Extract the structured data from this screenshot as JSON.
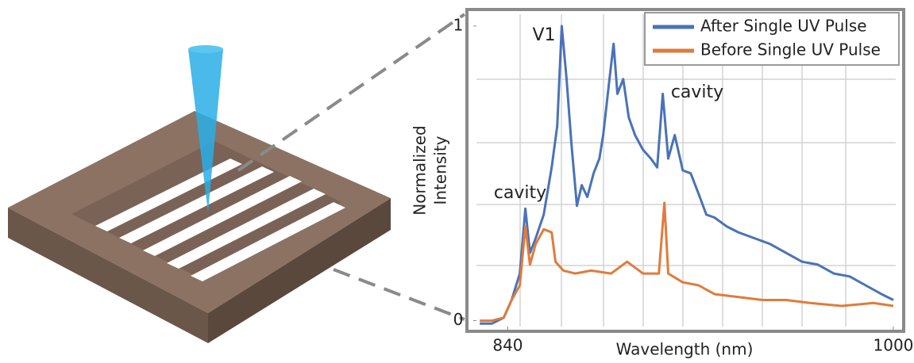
{
  "chart_data": {
    "type": "line",
    "xlabel": "Wavelength (nm)",
    "ylabel": [
      "Normalized",
      "Intensity"
    ],
    "xlim": [
      827,
      1001
    ],
    "xticks": [
      840,
      1000
    ],
    "ylim": [
      -0.02,
      1.04
    ],
    "yticks": [
      0,
      1
    ],
    "grid": true,
    "legend": "upper right",
    "annotations": [
      "V1",
      "cavity",
      "cavity"
    ],
    "series": [
      {
        "name": "After Single UV Pulse",
        "color": "#4a72b8",
        "x": [
          828.4,
          833.4,
          838.3,
          841.6,
          845,
          847.3,
          849.2,
          851.6,
          854.9,
          858.2,
          860.5,
          862.4,
          864.4,
          866.4,
          868.7,
          870.7,
          873,
          875.6,
          878,
          879.6,
          882.2,
          883.9,
          885.5,
          887.9,
          890.2,
          892.8,
          896.1,
          899.4,
          902,
          904.3,
          906.6,
          909.3,
          912.6,
          915.9,
          919.2,
          922.4,
          925.8,
          930.8,
          935.7,
          942.3,
          948.9,
          955.5,
          962.1,
          968.7,
          975.3,
          981.9,
          988.5,
          995.1,
          1000
        ],
        "values": [
          -0.01,
          -0.01,
          0.01,
          0.07,
          0.16,
          0.38,
          0.23,
          0.28,
          0.36,
          0.52,
          0.66,
          1.0,
          0.82,
          0.6,
          0.39,
          0.46,
          0.42,
          0.5,
          0.55,
          0.63,
          0.82,
          0.94,
          0.77,
          0.82,
          0.69,
          0.63,
          0.58,
          0.55,
          0.52,
          0.77,
          0.55,
          0.63,
          0.51,
          0.5,
          0.43,
          0.36,
          0.35,
          0.32,
          0.3,
          0.28,
          0.26,
          0.23,
          0.2,
          0.19,
          0.16,
          0.15,
          0.12,
          0.09,
          0.07
        ]
      },
      {
        "name": "Before Single UV Pulse",
        "color": "#e07b3c",
        "x": [
          828.4,
          833.4,
          838.3,
          841.6,
          845,
          847.3,
          849.2,
          851.6,
          854.9,
          858.2,
          859.8,
          863.1,
          868,
          874.6,
          882.9,
          889.5,
          896.1,
          902.7,
          905,
          906.6,
          912.6,
          919.2,
          925.8,
          935.7,
          945.6,
          955.5,
          965.4,
          978.6,
          991.8,
          1000
        ],
        "values": [
          0,
          0,
          0.01,
          0.07,
          0.12,
          0.32,
          0.19,
          0.26,
          0.31,
          0.3,
          0.2,
          0.17,
          0.16,
          0.17,
          0.16,
          0.2,
          0.16,
          0.16,
          0.4,
          0.16,
          0.13,
          0.12,
          0.09,
          0.08,
          0.07,
          0.07,
          0.06,
          0.05,
          0.06,
          0.05
        ]
      }
    ]
  }
}
